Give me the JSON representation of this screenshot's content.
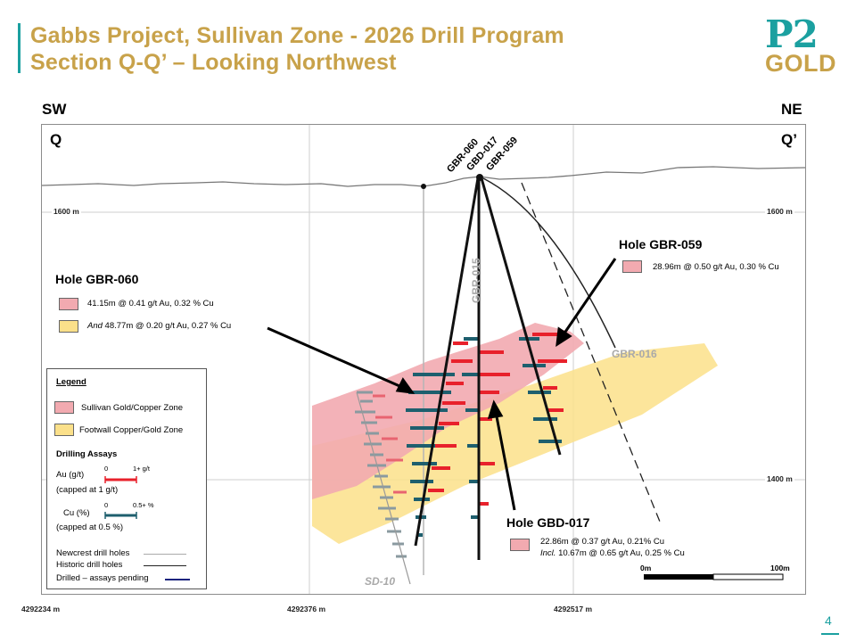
{
  "title": {
    "line1": "Gabbs Project, Sullivan Zone - 2026 Drill Program",
    "line2": "Section Q-Q’ – Looking Northwest"
  },
  "logo": {
    "top": "P2",
    "bottom": "GOLD"
  },
  "directions": {
    "sw": "SW",
    "ne": "NE",
    "q": "Q",
    "q_prime": "Q’"
  },
  "elevations": {
    "upper": "1600 m",
    "lower": "1400 m"
  },
  "coordinates": [
    "4292234 m",
    "4292376 m",
    "4292517 m"
  ],
  "hole_labels": [
    "GBR-060",
    "GBD-017",
    "GBR-059"
  ],
  "other_holes": {
    "gbr015": "GBR-015",
    "gbr016": "GBR-016",
    "sd10": "SD-10"
  },
  "callouts": {
    "gbr060": {
      "title": "Hole GBR-060",
      "line1": "41.15m @  0.41 g/t Au, 0.32 % Cu",
      "line2_prefix": "And",
      "line2": " 48.77m @  0.20 g/t Au, 0.27 % Cu"
    },
    "gbr059": {
      "title": "Hole GBR-059",
      "line1": "28.96m @  0.50 g/t Au, 0.30 % Cu"
    },
    "gbd017": {
      "title": "Hole GBD-017",
      "line1": "22.86m @  0.37 g/t Au, 0.21% Cu",
      "line2_prefix": "Incl.",
      "line2": " 10.67m @ 0.65 g/t Au, 0.25 % Cu"
    }
  },
  "legend": {
    "title": "Legend",
    "zone1": "Sullivan Gold/Copper Zone",
    "zone2": "Footwall Copper/Gold Zone",
    "assays_title": "Drilling Assays",
    "au_label": "Au (g/t)",
    "au_cap": "(capped at 1 g/t)",
    "au_min": "0",
    "au_max": "1+ g/t",
    "cu_label": "Cu (%)",
    "cu_cap": "(capped at 0.5 %)",
    "cu_min": "0",
    "cu_max": "0.5+ %",
    "newcrest": "Newcrest drill holes",
    "historic": "Historic drill holes",
    "pending": "Drilled – assays pending"
  },
  "scale": {
    "start": "0m",
    "end": "100m"
  },
  "colors": {
    "gold": "#c8a24a",
    "teal": "#1ba0a0",
    "sullivan_zone": "#f2aab0",
    "footwall_zone": "#fbe08a",
    "au_assay": "#e8212b",
    "cu_assay": "#1e5f6e",
    "pending": "#1a237e"
  },
  "page_number": "4"
}
